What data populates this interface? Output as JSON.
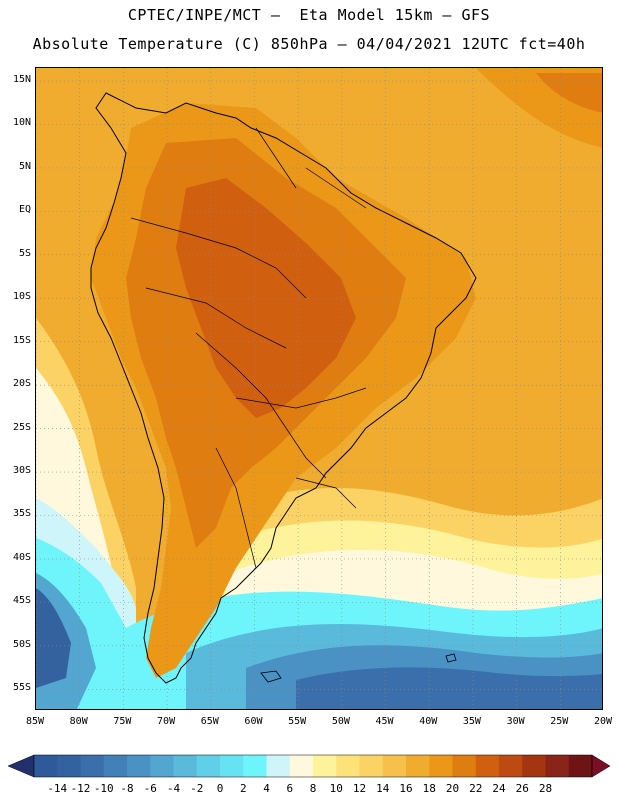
{
  "title": {
    "line1": "CPTEC/INPE/MCT –  Eta Model 15km – GFS",
    "line2": "Absolute Temperature (C) 850hPa – 04/04/2021 12UTC fct=40h"
  },
  "map": {
    "lon_range": [
      -85,
      -20
    ],
    "lat_range": [
      -57.5,
      16.5
    ],
    "lat_labels": [
      {
        "lat": 15,
        "text": "15N"
      },
      {
        "lat": 10,
        "text": "10N"
      },
      {
        "lat": 5,
        "text": "5N"
      },
      {
        "lat": 0,
        "text": "EQ"
      },
      {
        "lat": -5,
        "text": "5S"
      },
      {
        "lat": -10,
        "text": "10S"
      },
      {
        "lat": -15,
        "text": "15S"
      },
      {
        "lat": -20,
        "text": "20S"
      },
      {
        "lat": -25,
        "text": "25S"
      },
      {
        "lat": -30,
        "text": "30S"
      },
      {
        "lat": -35,
        "text": "35S"
      },
      {
        "lat": -40,
        "text": "40S"
      },
      {
        "lat": -45,
        "text": "45S"
      },
      {
        "lat": -50,
        "text": "50S"
      },
      {
        "lat": -55,
        "text": "55S"
      }
    ],
    "lon_labels": [
      {
        "lon": -85,
        "text": "85W"
      },
      {
        "lon": -80,
        "text": "80W"
      },
      {
        "lon": -75,
        "text": "75W"
      },
      {
        "lon": -70,
        "text": "70W"
      },
      {
        "lon": -65,
        "text": "65W"
      },
      {
        "lon": -60,
        "text": "60W"
      },
      {
        "lon": -55,
        "text": "55W"
      },
      {
        "lon": -50,
        "text": "50W"
      },
      {
        "lon": -45,
        "text": "45W"
      },
      {
        "lon": -40,
        "text": "40W"
      },
      {
        "lon": -35,
        "text": "35W"
      },
      {
        "lon": -30,
        "text": "30W"
      },
      {
        "lon": -25,
        "text": "25W"
      },
      {
        "lon": -20,
        "text": "20W"
      }
    ]
  },
  "colorbar": {
    "labels": [
      "-14",
      "-12",
      "-10",
      "-8",
      "-6",
      "-4",
      "-2",
      "0",
      "2",
      "4",
      "6",
      "8",
      "10",
      "12",
      "14",
      "16",
      "18",
      "20",
      "22",
      "24",
      "26",
      "28"
    ],
    "colors": [
      "#2e5a9c",
      "#33629f",
      "#3a6fab",
      "#4280b8",
      "#4a91c4",
      "#52a6d0",
      "#5abadc",
      "#5fd0e8",
      "#66e2f2",
      "#6df5fb",
      "#cdf5fa",
      "#fff8dc",
      "#fef29a",
      "#fde27a",
      "#fbd264",
      "#f6c04b",
      "#f0ac2f",
      "#eb9818",
      "#e07d10",
      "#d06010",
      "#bd4a10",
      "#a33510",
      "#8a2418",
      "#6e1414"
    ],
    "end_colors": {
      "low": "#23306e",
      "high": "#7a0e25"
    }
  }
}
